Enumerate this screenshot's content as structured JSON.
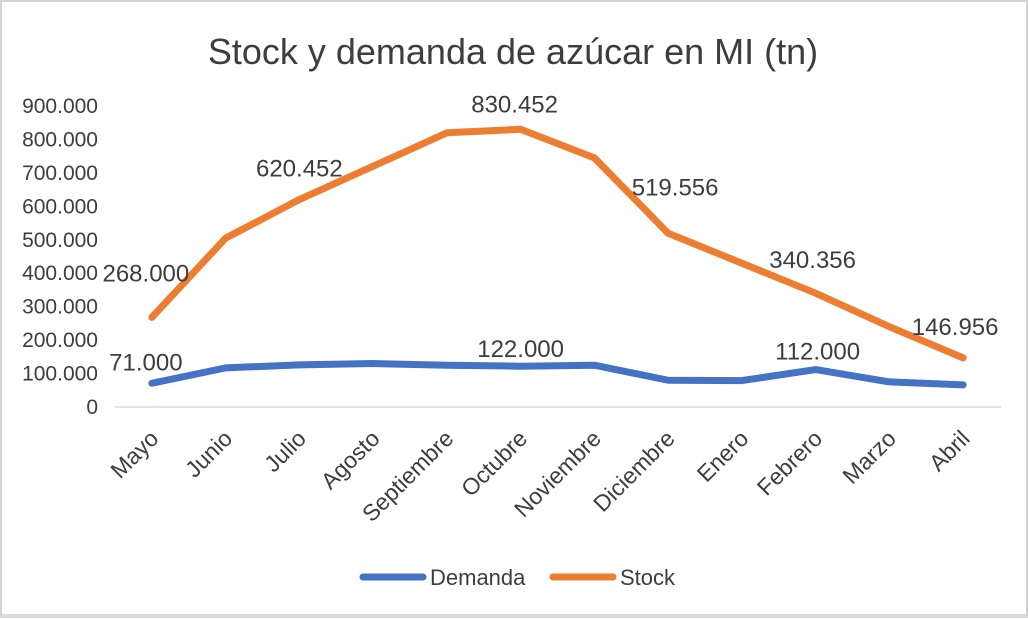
{
  "chart_data": {
    "type": "line",
    "title": "Stock y demanda de azúcar en MI (tn)",
    "categories": [
      "Mayo",
      "Junio",
      "Julio",
      "Agosto",
      "Septiembre",
      "Octubre",
      "Noviembre",
      "Diciembre",
      "Enero",
      "Febrero",
      "Marzo",
      "Abril"
    ],
    "series": [
      {
        "name": "Demanda",
        "color": "#4472C4",
        "values": [
          71000,
          117000,
          126000,
          130000,
          125000,
          122000,
          125000,
          80000,
          79000,
          112000,
          75000,
          66000
        ],
        "point_labels": [
          {
            "index": 0,
            "text": "71.000"
          },
          {
            "index": 5,
            "text": "122.000"
          },
          {
            "index": 9,
            "text": "112.000"
          }
        ]
      },
      {
        "name": "Stock",
        "color": "#ED7D31",
        "values": [
          268000,
          505000,
          620452,
          720000,
          820000,
          830452,
          745000,
          519556,
          430000,
          340356,
          240000,
          146956
        ],
        "point_labels": [
          {
            "index": 0,
            "text": "268.000"
          },
          {
            "index": 2,
            "text": "620.452"
          },
          {
            "index": 5,
            "text": "830.452"
          },
          {
            "index": 7,
            "text": "519.556"
          },
          {
            "index": 9,
            "text": "340.356"
          },
          {
            "index": 11,
            "text": "146.956"
          }
        ]
      }
    ],
    "y_axis": {
      "min": 0,
      "max": 900000,
      "step": 100000,
      "tick_labels": [
        "0",
        "100.000",
        "200.000",
        "300.000",
        "400.000",
        "500.000",
        "600.000",
        "700.000",
        "800.000",
        "900.000"
      ]
    },
    "legend": [
      {
        "label": "Demanda",
        "color": "#4472C4"
      },
      {
        "label": "Stock",
        "color": "#ED7D31"
      }
    ],
    "legend_position": "bottom",
    "grid": false,
    "text_color": "#3d3d3d",
    "axis_line_color": "#d9d9d9"
  }
}
